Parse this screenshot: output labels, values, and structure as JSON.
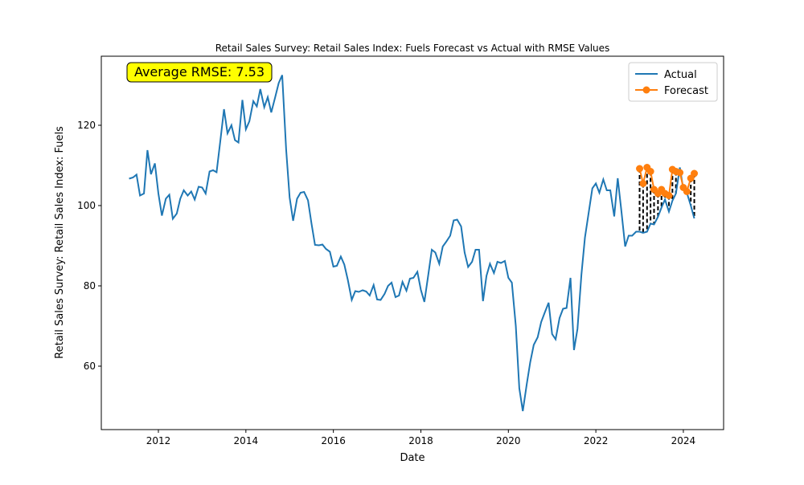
{
  "chart_data": {
    "type": "line",
    "title": "Retail Sales Survey: Retail Sales Index: Fuels Forecast vs Actual with RMSE Values",
    "x_label": "Date",
    "y_label": "Retail Sales Survey: Retail Sales Index: Fuels",
    "annotation": "Average RMSE: 7.53",
    "xlim": [
      2010.695,
      2024.92
    ],
    "ylim": [
      44.2,
      137.2
    ],
    "xticks": [
      2012,
      2014,
      2016,
      2018,
      2020,
      2022,
      2024
    ],
    "yticks": [
      60,
      80,
      100,
      120
    ],
    "legend": "upper right",
    "series": [
      {
        "name": "Actual",
        "color": "#1f77b4",
        "x": [
          2011.33,
          2011.42,
          2011.5,
          2011.58,
          2011.67,
          2011.75,
          2011.83,
          2011.92,
          2012.0,
          2012.08,
          2012.17,
          2012.25,
          2012.33,
          2012.42,
          2012.5,
          2012.58,
          2012.67,
          2012.75,
          2012.83,
          2012.92,
          2013.0,
          2013.08,
          2013.17,
          2013.25,
          2013.33,
          2013.42,
          2013.5,
          2013.58,
          2013.67,
          2013.75,
          2013.83,
          2013.92,
          2014.0,
          2014.08,
          2014.17,
          2014.25,
          2014.33,
          2014.42,
          2014.5,
          2014.58,
          2014.67,
          2014.75,
          2014.83,
          2014.92,
          2015.0,
          2015.08,
          2015.17,
          2015.25,
          2015.33,
          2015.42,
          2015.5,
          2015.58,
          2015.67,
          2015.75,
          2015.83,
          2015.92,
          2016.0,
          2016.08,
          2016.17,
          2016.25,
          2016.33,
          2016.42,
          2016.5,
          2016.58,
          2016.67,
          2016.75,
          2016.83,
          2016.92,
          2017.0,
          2017.08,
          2017.17,
          2017.25,
          2017.33,
          2017.42,
          2017.5,
          2017.58,
          2017.67,
          2017.75,
          2017.83,
          2017.92,
          2018.0,
          2018.08,
          2018.17,
          2018.25,
          2018.33,
          2018.42,
          2018.5,
          2018.58,
          2018.67,
          2018.75,
          2018.83,
          2018.92,
          2019.0,
          2019.08,
          2019.17,
          2019.25,
          2019.33,
          2019.42,
          2019.5,
          2019.58,
          2019.67,
          2019.75,
          2019.83,
          2019.92,
          2020.0,
          2020.08,
          2020.17,
          2020.25,
          2020.33,
          2020.42,
          2020.5,
          2020.58,
          2020.67,
          2020.75,
          2020.83,
          2020.92,
          2021.0,
          2021.08,
          2021.17,
          2021.25,
          2021.33,
          2021.42,
          2021.5,
          2021.58,
          2021.67,
          2021.75,
          2021.83,
          2021.92,
          2022.0,
          2022.08,
          2022.17,
          2022.25,
          2022.33,
          2022.42,
          2022.5,
          2022.58,
          2022.67,
          2022.75,
          2022.83,
          2022.92,
          2023.0,
          2023.08,
          2023.17,
          2023.25,
          2023.33,
          2023.42,
          2023.5,
          2023.58,
          2023.67,
          2023.75,
          2023.83,
          2023.92,
          2024.0,
          2024.08,
          2024.17,
          2024.25
        ],
        "values": [
          106.7,
          107,
          107.7,
          102.5,
          103,
          113.8,
          107.8,
          110.5,
          103,
          97.5,
          101.7,
          102.7,
          96.7,
          98,
          101.7,
          103.8,
          102.5,
          103.5,
          101.5,
          104.7,
          104.5,
          103,
          108.5,
          108.8,
          108.3,
          116.5,
          124,
          118,
          120,
          116.3,
          115.7,
          126.3,
          119,
          121,
          126,
          124.7,
          129,
          124.5,
          127,
          123.2,
          127,
          130.5,
          132.5,
          114,
          102,
          96.2,
          101.7,
          103.2,
          103.4,
          101.3,
          95.5,
          90.2,
          90.1,
          90.3,
          89.2,
          88.5,
          84.8,
          85,
          87.3,
          85.3,
          81.5,
          76.5,
          78.7,
          78.5,
          78.9,
          78.6,
          77.6,
          80.2,
          76.6,
          76.5,
          78,
          80,
          80.8,
          77.2,
          77.6,
          81,
          78.8,
          81.8,
          82,
          83.5,
          79,
          76,
          82.8,
          89,
          88.3,
          85.5,
          89.8,
          91,
          92.5,
          96.3,
          96.5,
          94.8,
          88.3,
          84.7,
          86,
          89,
          89,
          76.2,
          82.5,
          85.5,
          83.2,
          86,
          85.7,
          86.2,
          82,
          80.8,
          70,
          54.5,
          48.8,
          55.5,
          61,
          65.3,
          67.2,
          71,
          73.3,
          75.8,
          68,
          66.7,
          72,
          74.3,
          74.5,
          82,
          64,
          69.3,
          82.8,
          92,
          97.8,
          104.3,
          105.5,
          103.2,
          106.5,
          103.8,
          103.8,
          97.3,
          106.8,
          99,
          89.8,
          92.5,
          92.5,
          93.5,
          93.5,
          93.2,
          93.5,
          95.5,
          95.3,
          97.2,
          99.5,
          101.5,
          98.5,
          101.2,
          103,
          109.5,
          104,
          103.2,
          100,
          96.8
        ]
      },
      {
        "name": "Forecast",
        "color": "#ff7f0e",
        "x": [
          2023.0,
          2023.08,
          2023.17,
          2023.25,
          2023.33,
          2023.42,
          2023.5,
          2023.58,
          2023.67,
          2023.75,
          2023.83,
          2023.92,
          2024.0,
          2024.08,
          2024.17,
          2024.25
        ],
        "values": [
          109.2,
          105.5,
          109.5,
          108.5,
          104,
          103,
          104,
          103,
          102.5,
          109,
          108.5,
          108.2,
          104.5,
          103.5,
          106.8,
          108
        ]
      }
    ]
  }
}
